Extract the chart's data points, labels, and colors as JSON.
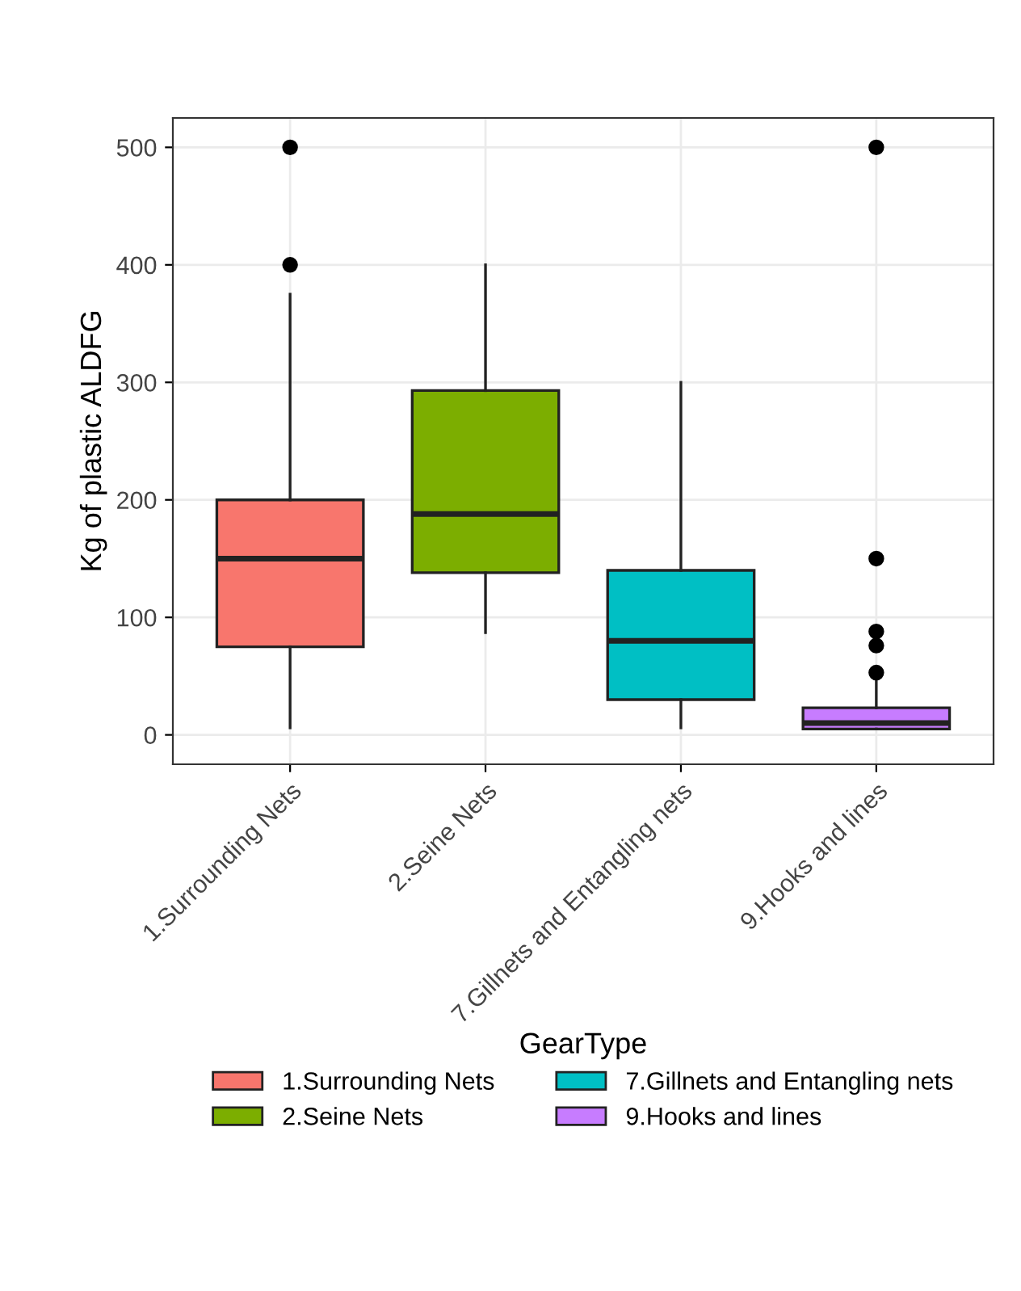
{
  "chart_data": {
    "type": "box",
    "ylabel": "Kg of plastic ALDFG",
    "legend_title": "GearType",
    "legend": "bottom",
    "grid": true,
    "categories": [
      "1.Surrounding Nets",
      "2.Seine Nets",
      "7.Gillnets and Entangling nets",
      "9.Hooks and lines"
    ],
    "ylim": [
      -25,
      525
    ],
    "yticks": [
      0,
      100,
      200,
      300,
      400,
      500
    ],
    "series": [
      {
        "name": "1.Surrounding Nets",
        "color": "#f8766d",
        "boxes": [
          {
            "low": 6,
            "q1": 75,
            "median": 150,
            "q3": 200,
            "high": 375,
            "outliers": [
              400,
              500
            ]
          },
          null,
          null,
          null
        ]
      },
      {
        "name": "2.Seine Nets",
        "color": "#7cae00",
        "boxes": [
          null,
          {
            "low": 87,
            "q1": 138,
            "median": 188,
            "q3": 293,
            "high": 400
          },
          null,
          null
        ]
      },
      {
        "name": "7.Gillnets and Entangling nets",
        "color": "#00bfc4",
        "boxes": [
          null,
          null,
          {
            "low": 6,
            "q1": 30,
            "median": 80,
            "q3": 140,
            "high": 300
          },
          null
        ]
      },
      {
        "name": "9.Hooks and lines",
        "color": "#c77cff",
        "boxes": [
          null,
          null,
          null,
          {
            "low": 5,
            "q1": 5,
            "median": 10,
            "q3": 23,
            "high": 49,
            "outliers": [
              53,
              76,
              88,
              150,
              500
            ]
          }
        ]
      }
    ]
  }
}
